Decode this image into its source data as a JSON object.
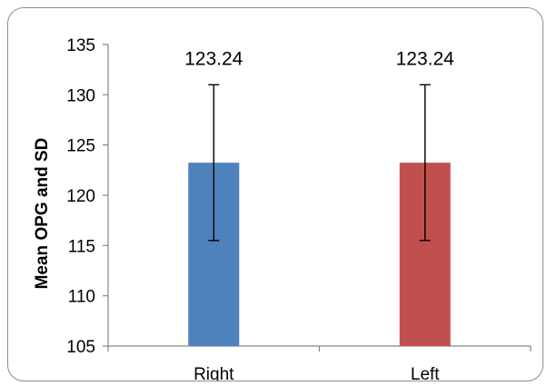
{
  "chart_data": {
    "type": "bar",
    "title": "",
    "xlabel": "",
    "ylabel": "Mean OPG and SD",
    "ylim": [
      105,
      135
    ],
    "yticks": [
      105,
      110,
      115,
      120,
      125,
      130,
      135
    ],
    "grid": false,
    "legend": "none",
    "categories": [
      "Right",
      "Left"
    ],
    "values": [
      123.24,
      123.24
    ],
    "error_low": [
      115.5,
      115.5
    ],
    "error_high": [
      131.0,
      131.0
    ],
    "data_labels": [
      "123.24",
      "123.24"
    ],
    "colors": [
      "#4f81bd",
      "#c0504d"
    ]
  }
}
